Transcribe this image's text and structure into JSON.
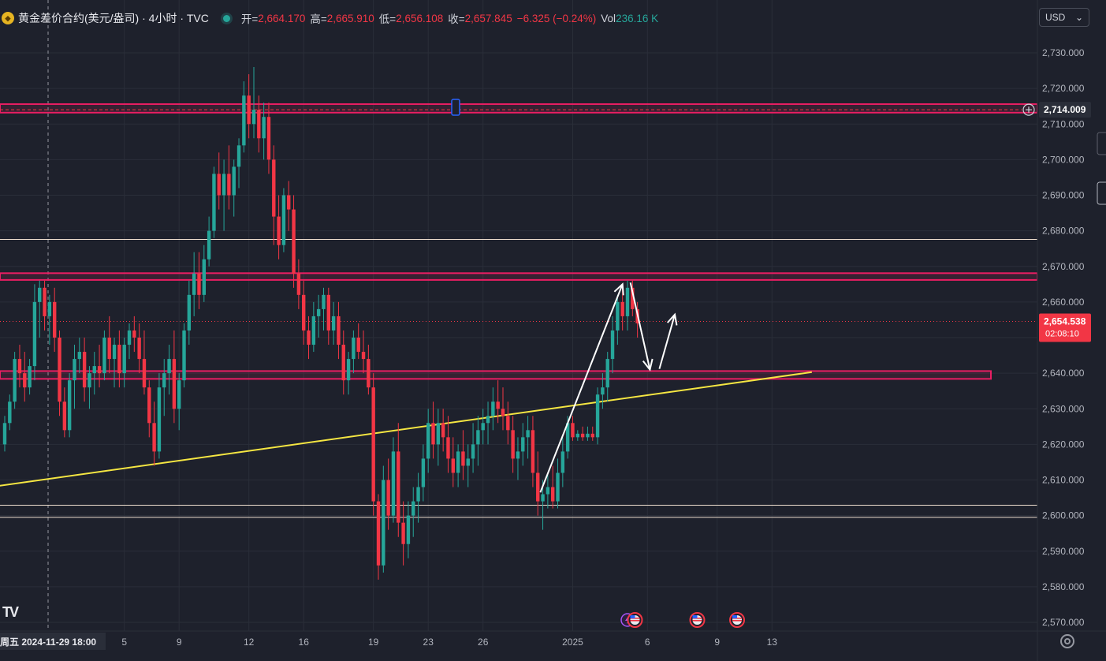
{
  "header": {
    "symbol": "黄金差价合约(美元/盎司) · 4小时 · TVC",
    "open_label": "开=",
    "open": "2,664.170",
    "high_label": "高=",
    "high": "2,665.910",
    "low_label": "低=",
    "low": "2,656.108",
    "close_label": "收=",
    "close": "2,657.845",
    "change": "−6.325 (−0.24%)",
    "vol_label": "Vol",
    "vol": "236.16 K"
  },
  "currency": "USD",
  "colors": {
    "up": "#26a69a",
    "down": "#f23645",
    "zone": "#e91e63",
    "trendline": "#f5e642",
    "level": "#f0e0d0",
    "background": "#1e212c"
  },
  "chart_data": {
    "type": "candlestick",
    "y_ticks": [
      2570,
      2580,
      2590,
      2600,
      2610,
      2620,
      2630,
      2640,
      2650,
      2660,
      2670,
      2680,
      2690,
      2700,
      2710,
      2720,
      2730
    ],
    "y_tick_labels": [
      "2,570.000",
      "2,580.000",
      "2,590.000",
      "2,600.000",
      "2,610.000",
      "2,620.000",
      "2,630.000",
      "2,640.000",
      "2,650.000",
      "2,660.000",
      "2,670.000",
      "2,680.000",
      "2,690.000",
      "2,700.000",
      "2,710.000",
      "2,720.000",
      "2,730.000"
    ],
    "ylim": [
      2565,
      2738
    ],
    "x_labels": [
      {
        "bar": 0,
        "text": "周五 2024-11-29   18:00"
      },
      {
        "bar": 24,
        "text": "5"
      },
      {
        "bar": 35,
        "text": "9"
      },
      {
        "bar": 49,
        "text": "12"
      },
      {
        "bar": 60,
        "text": "16"
      },
      {
        "bar": 74,
        "text": "19"
      },
      {
        "bar": 85,
        "text": "23"
      },
      {
        "bar": 96,
        "text": "26"
      },
      {
        "bar": 114,
        "text": "2025"
      },
      {
        "bar": 129,
        "text": "6"
      },
      {
        "bar": 143,
        "text": "9"
      },
      {
        "bar": 154,
        "text": "13"
      }
    ],
    "price_markers": [
      {
        "value": 2714.009,
        "label": "2,714.009"
      },
      {
        "value": 2654.538,
        "label": "2,654.538",
        "sub": "02:08:10"
      }
    ],
    "zones": [
      [
        2713.2,
        2715.6
      ],
      [
        2666.2,
        2668.1
      ],
      [
        2638.4,
        2640.6
      ]
    ],
    "levels": [
      2677.6,
      2602.9,
      2599.5
    ],
    "trendline": {
      "from": {
        "bar": -7,
        "value": 2607.2
      },
      "to": {
        "bar": 162,
        "value": 2640.3
      }
    },
    "projection": [
      {
        "bar": 107.5,
        "value": 2606.5
      },
      {
        "bar": 124,
        "value": 2665
      },
      {
        "bar": 129.5,
        "value": 2641
      },
      {
        "bar": 134.5,
        "value": 2656.5
      }
    ],
    "candles": [
      [
        2620,
        2628,
        2618,
        2626
      ],
      [
        2626,
        2634,
        2624,
        2632
      ],
      [
        2632,
        2646,
        2630,
        2644
      ],
      [
        2644,
        2648,
        2636,
        2640
      ],
      [
        2640,
        2646,
        2632,
        2636
      ],
      [
        2636,
        2644,
        2634,
        2642
      ],
      [
        2642,
        2665,
        2638,
        2660
      ],
      [
        2660,
        2666,
        2650,
        2664
      ],
      [
        2664,
        2666,
        2652,
        2656
      ],
      [
        2656,
        2662,
        2648,
        2660
      ],
      [
        2660,
        2664,
        2646,
        2650
      ],
      [
        2650,
        2652,
        2628,
        2632
      ],
      [
        2632,
        2636,
        2622,
        2624
      ],
      [
        2624,
        2640,
        2622,
        2638
      ],
      [
        2638,
        2648,
        2630,
        2644
      ],
      [
        2644,
        2650,
        2640,
        2646
      ],
      [
        2646,
        2650,
        2632,
        2636
      ],
      [
        2636,
        2642,
        2630,
        2640
      ],
      [
        2640,
        2646,
        2634,
        2642
      ],
      [
        2642,
        2648,
        2636,
        2640
      ],
      [
        2640,
        2652,
        2638,
        2650
      ],
      [
        2650,
        2656,
        2640,
        2644
      ],
      [
        2644,
        2650,
        2636,
        2648
      ],
      [
        2648,
        2652,
        2636,
        2640
      ],
      [
        2640,
        2650,
        2636,
        2648
      ],
      [
        2648,
        2654,
        2644,
        2652
      ],
      [
        2652,
        2656,
        2646,
        2650
      ],
      [
        2650,
        2654,
        2640,
        2644
      ],
      [
        2644,
        2652,
        2634,
        2636
      ],
      [
        2636,
        2638,
        2622,
        2626
      ],
      [
        2626,
        2632,
        2614,
        2618
      ],
      [
        2618,
        2640,
        2616,
        2636
      ],
      [
        2636,
        2644,
        2628,
        2640
      ],
      [
        2640,
        2648,
        2634,
        2644
      ],
      [
        2644,
        2652,
        2626,
        2630
      ],
      [
        2630,
        2640,
        2624,
        2638
      ],
      [
        2638,
        2654,
        2636,
        2652
      ],
      [
        2652,
        2666,
        2648,
        2662
      ],
      [
        2662,
        2674,
        2656,
        2668
      ],
      [
        2668,
        2674,
        2658,
        2662
      ],
      [
        2662,
        2676,
        2660,
        2672
      ],
      [
        2672,
        2684,
        2670,
        2680
      ],
      [
        2680,
        2698,
        2678,
        2696
      ],
      [
        2696,
        2702,
        2686,
        2690
      ],
      [
        2690,
        2700,
        2680,
        2696
      ],
      [
        2696,
        2704,
        2686,
        2690
      ],
      [
        2690,
        2700,
        2684,
        2698
      ],
      [
        2698,
        2706,
        2692,
        2704
      ],
      [
        2704,
        2722,
        2702,
        2718
      ],
      [
        2718,
        2724,
        2706,
        2710
      ],
      [
        2710,
        2726,
        2706,
        2714
      ],
      [
        2714,
        2718,
        2702,
        2706
      ],
      [
        2706,
        2716,
        2700,
        2712
      ],
      [
        2712,
        2716,
        2696,
        2700
      ],
      [
        2700,
        2704,
        2676,
        2684
      ],
      [
        2684,
        2690,
        2672,
        2676
      ],
      [
        2676,
        2692,
        2674,
        2690
      ],
      [
        2690,
        2694,
        2680,
        2686
      ],
      [
        2686,
        2690,
        2664,
        2668
      ],
      [
        2668,
        2672,
        2658,
        2662
      ],
      [
        2662,
        2666,
        2648,
        2652
      ],
      [
        2652,
        2656,
        2644,
        2648
      ],
      [
        2648,
        2660,
        2646,
        2656
      ],
      [
        2656,
        2662,
        2650,
        2658
      ],
      [
        2658,
        2664,
        2652,
        2662
      ],
      [
        2662,
        2664,
        2648,
        2652
      ],
      [
        2652,
        2660,
        2648,
        2656
      ],
      [
        2656,
        2660,
        2644,
        2648
      ],
      [
        2648,
        2652,
        2634,
        2638
      ],
      [
        2638,
        2646,
        2634,
        2644
      ],
      [
        2644,
        2652,
        2640,
        2650
      ],
      [
        2650,
        2654,
        2644,
        2646
      ],
      [
        2646,
        2652,
        2640,
        2644
      ],
      [
        2644,
        2648,
        2634,
        2636
      ],
      [
        2636,
        2640,
        2600,
        2604
      ],
      [
        2604,
        2606,
        2582,
        2586
      ],
      [
        2586,
        2614,
        2584,
        2610
      ],
      [
        2610,
        2616,
        2596,
        2600
      ],
      [
        2600,
        2622,
        2598,
        2618
      ],
      [
        2618,
        2626,
        2594,
        2598
      ],
      [
        2598,
        2604,
        2586,
        2592
      ],
      [
        2592,
        2604,
        2588,
        2600
      ],
      [
        2600,
        2608,
        2594,
        2604
      ],
      [
        2604,
        2612,
        2598,
        2608
      ],
      [
        2608,
        2620,
        2604,
        2616
      ],
      [
        2616,
        2630,
        2612,
        2626
      ],
      [
        2626,
        2632,
        2616,
        2620
      ],
      [
        2620,
        2630,
        2614,
        2626
      ],
      [
        2626,
        2630,
        2618,
        2622
      ],
      [
        2622,
        2628,
        2612,
        2616
      ],
      [
        2616,
        2622,
        2608,
        2612
      ],
      [
        2612,
        2620,
        2608,
        2618
      ],
      [
        2618,
        2624,
        2610,
        2614
      ],
      [
        2614,
        2620,
        2608,
        2616
      ],
      [
        2616,
        2626,
        2612,
        2620
      ],
      [
        2620,
        2628,
        2614,
        2624
      ],
      [
        2624,
        2630,
        2620,
        2626
      ],
      [
        2626,
        2632,
        2620,
        2628
      ],
      [
        2628,
        2636,
        2624,
        2632
      ],
      [
        2632,
        2638,
        2626,
        2630
      ],
      [
        2630,
        2636,
        2624,
        2628
      ],
      [
        2628,
        2632,
        2620,
        2624
      ],
      [
        2624,
        2628,
        2612,
        2616
      ],
      [
        2616,
        2622,
        2610,
        2618
      ],
      [
        2618,
        2626,
        2614,
        2622
      ],
      [
        2622,
        2628,
        2616,
        2624
      ],
      [
        2624,
        2628,
        2608,
        2612
      ],
      [
        2612,
        2618,
        2600,
        2604
      ],
      [
        2604,
        2610,
        2596,
        2606
      ],
      [
        2606,
        2612,
        2602,
        2608
      ],
      [
        2608,
        2614,
        2602,
        2604
      ],
      [
        2604,
        2616,
        2602,
        2612
      ],
      [
        2612,
        2622,
        2608,
        2618
      ],
      [
        2618,
        2628,
        2616,
        2626
      ],
      [
        2626,
        2628,
        2621,
        2622
      ],
      [
        2622,
        2624,
        2621,
        2623
      ],
      [
        2623,
        2625,
        2621,
        2622
      ],
      [
        2622,
        2625,
        2621,
        2623
      ],
      [
        2623,
        2625,
        2621,
        2622
      ],
      [
        2622,
        2636,
        2620,
        2634
      ],
      [
        2634,
        2640,
        2630,
        2636
      ],
      [
        2636,
        2646,
        2632,
        2644
      ],
      [
        2644,
        2656,
        2640,
        2652
      ],
      [
        2652,
        2662,
        2648,
        2660
      ],
      [
        2660,
        2664,
        2652,
        2656
      ],
      [
        2656,
        2666,
        2652,
        2664
      ],
      [
        2664,
        2666,
        2656,
        2658
      ],
      [
        2658,
        2660,
        2650,
        2654
      ]
    ],
    "bar_spacing": 6.32,
    "first_bar_x": 6,
    "events": [
      {
        "bar": 125,
        "icon": "flash-icon"
      },
      {
        "bar": 126.5,
        "icon": "us-flag-icon"
      },
      {
        "bar": 139,
        "icon": "us-flag-icon"
      },
      {
        "bar": 147,
        "icon": "us-flag-icon"
      }
    ]
  }
}
